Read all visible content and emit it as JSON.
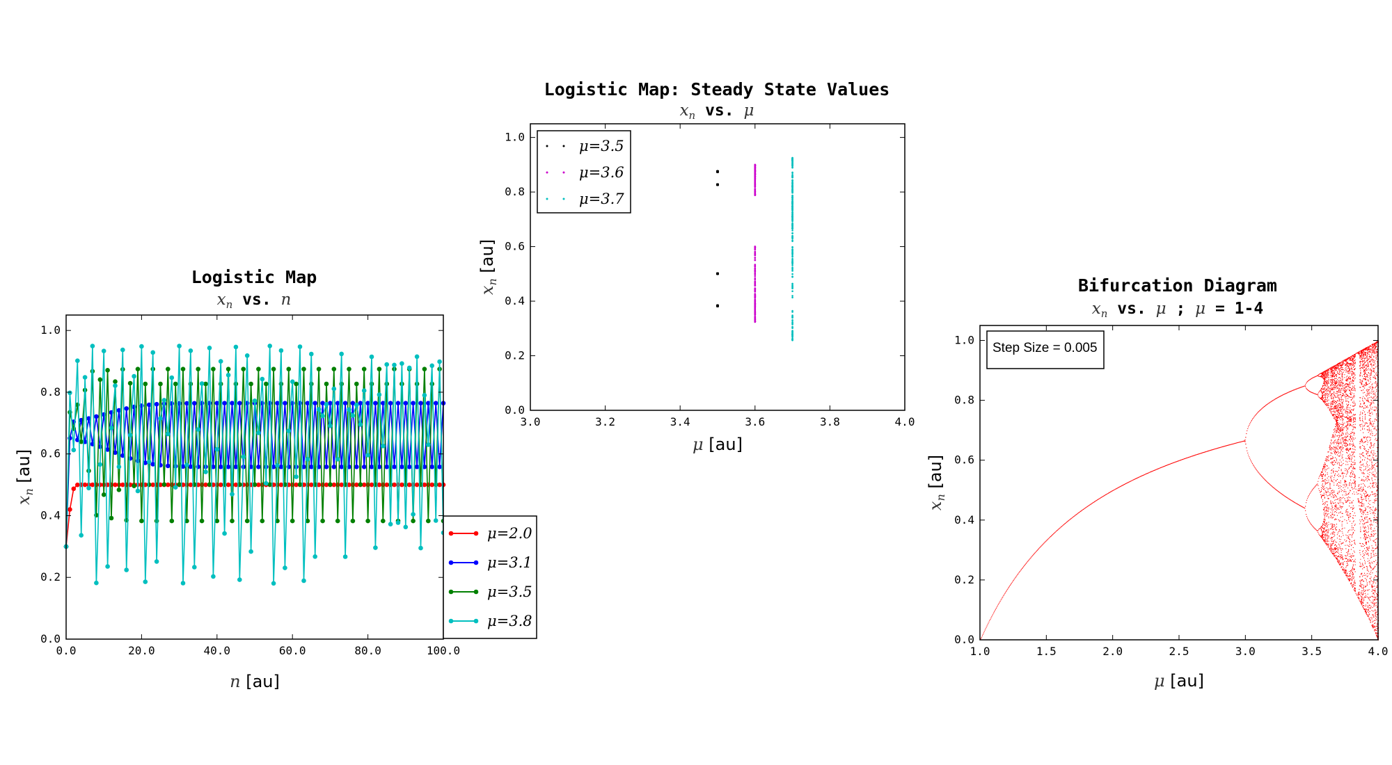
{
  "chart_data": [
    {
      "type": "line",
      "title": "Logistic Map",
      "subtitle": "x_n vs. n",
      "xlabel": "n [au]",
      "ylabel": "x_n [au]",
      "xlim": [
        0,
        100
      ],
      "ylim": [
        0,
        1.05
      ],
      "xticks": [
        "0.0",
        "20.0",
        "40.0",
        "60.0",
        "80.0",
        "100.0"
      ],
      "yticks": [
        "0.0",
        "0.2",
        "0.4",
        "0.6",
        "0.8",
        "1.0"
      ],
      "x0": 0.3,
      "n_points": 101,
      "legend_position": "outside-lower-right",
      "series": [
        {
          "name": "μ=2.0",
          "mu": 2.0,
          "color": "#ff0000"
        },
        {
          "name": "μ=3.1",
          "mu": 3.1,
          "color": "#0000ff"
        },
        {
          "name": "μ=3.5",
          "mu": 3.5,
          "color": "#008000"
        },
        {
          "name": "μ=3.8",
          "mu": 3.8,
          "color": "#00bfbf"
        }
      ]
    },
    {
      "type": "scatter",
      "title": "Logistic Map: Steady State Values",
      "subtitle": "x_n vs. μ",
      "xlabel": "μ [au]",
      "ylabel": "x_n [au]",
      "xlim": [
        3.0,
        4.0
      ],
      "ylim": [
        0.0,
        1.05
      ],
      "xticks": [
        "3.0",
        "3.2",
        "3.4",
        "3.6",
        "3.8",
        "4.0"
      ],
      "yticks": [
        "0.0",
        "0.2",
        "0.4",
        "0.6",
        "0.8",
        "1.0"
      ],
      "legend_position": "upper-left",
      "series": [
        {
          "name": "μ=3.5",
          "mu": 3.5,
          "color": "#000000"
        },
        {
          "name": "μ=3.6",
          "mu": 3.6,
          "color": "#cc00cc"
        },
        {
          "name": "μ=3.7",
          "mu": 3.7,
          "color": "#00bfbf"
        }
      ]
    },
    {
      "type": "scatter",
      "title": "Bifurcation Diagram",
      "subtitle": "x_n vs. μ ; μ = 1-4",
      "xlabel": "μ [au]",
      "ylabel": "x_n [au]",
      "xlim": [
        1.0,
        4.0
      ],
      "ylim": [
        0.0,
        1.05
      ],
      "xticks": [
        "1.0",
        "1.5",
        "2.0",
        "2.5",
        "3.0",
        "3.5",
        "4.0"
      ],
      "yticks": [
        "0.0",
        "0.2",
        "0.4",
        "0.6",
        "0.8",
        "1.0"
      ],
      "step_size": 0.005,
      "annotation": "Step Size = 0.005",
      "color": "#ff0000"
    }
  ]
}
